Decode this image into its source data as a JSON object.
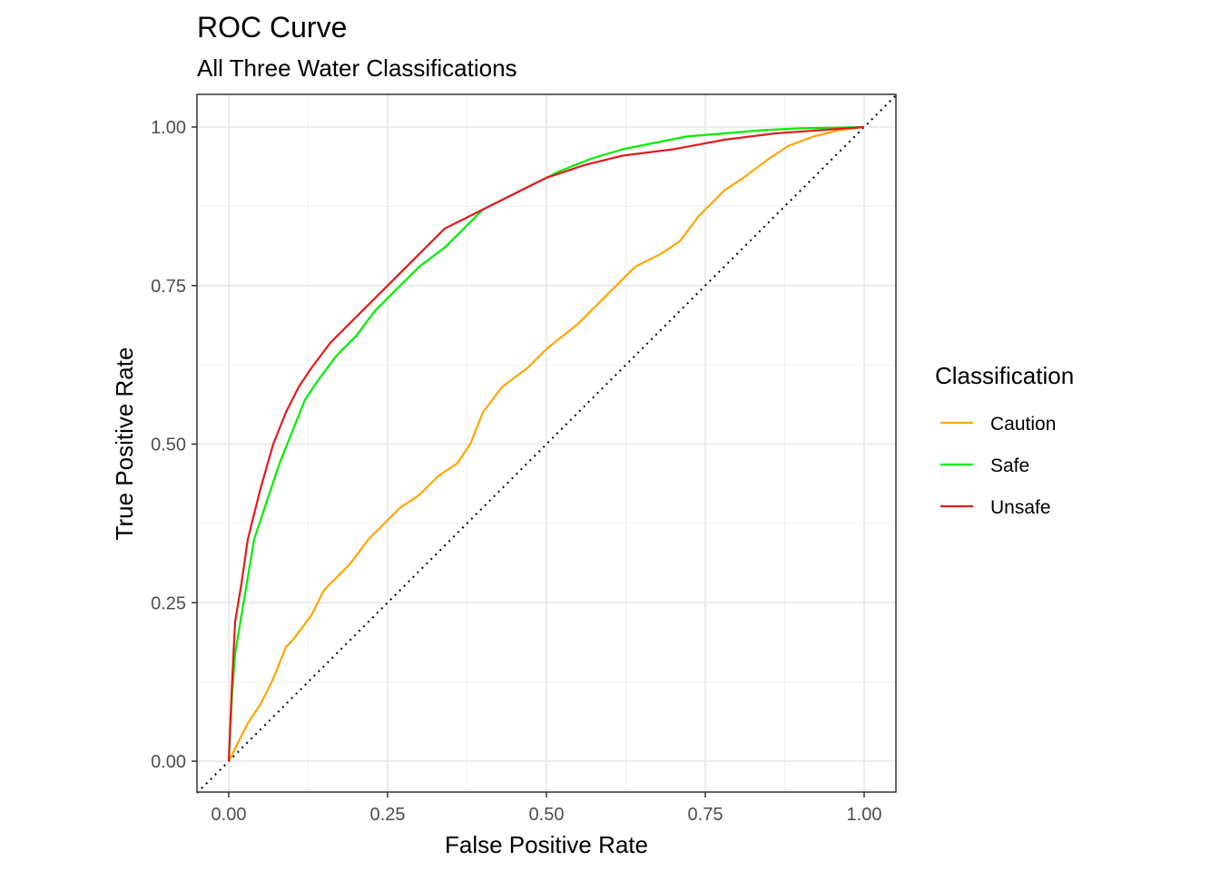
{
  "chart_data": {
    "type": "line",
    "title": "ROC Curve",
    "subtitle": "All Three Water Classifications",
    "xlabel": "False Positive Rate",
    "ylabel": "True Positive Rate",
    "xlim": [
      0,
      1
    ],
    "ylim": [
      0,
      1
    ],
    "x_ticks": [
      "0.00",
      "0.25",
      "0.50",
      "0.75",
      "1.00"
    ],
    "y_ticks": [
      "0.00",
      "0.25",
      "0.50",
      "0.75",
      "1.00"
    ],
    "grid": true,
    "reference_line": "diagonal dotted",
    "legend": {
      "title": "Classification",
      "position": "right"
    },
    "series": [
      {
        "name": "Caution",
        "color": "#FFA500",
        "x": [
          0,
          0.01,
          0.02,
          0.03,
          0.05,
          0.07,
          0.09,
          0.1,
          0.13,
          0.15,
          0.17,
          0.19,
          0.22,
          0.24,
          0.27,
          0.3,
          0.33,
          0.36,
          0.38,
          0.4,
          0.43,
          0.47,
          0.5,
          0.55,
          0.6,
          0.64,
          0.68,
          0.71,
          0.74,
          0.76,
          0.78,
          0.81,
          0.85,
          0.88,
          0.92,
          0.96,
          1.0
        ],
        "y": [
          0,
          0.02,
          0.04,
          0.06,
          0.09,
          0.13,
          0.18,
          0.19,
          0.23,
          0.27,
          0.29,
          0.31,
          0.35,
          0.37,
          0.4,
          0.42,
          0.45,
          0.47,
          0.5,
          0.55,
          0.59,
          0.62,
          0.65,
          0.69,
          0.74,
          0.78,
          0.8,
          0.82,
          0.86,
          0.88,
          0.9,
          0.92,
          0.95,
          0.97,
          0.985,
          0.995,
          1.0
        ]
      },
      {
        "name": "Safe",
        "color": "#00EE00",
        "x": [
          0,
          0.005,
          0.01,
          0.02,
          0.03,
          0.04,
          0.06,
          0.08,
          0.1,
          0.12,
          0.14,
          0.17,
          0.2,
          0.23,
          0.26,
          0.3,
          0.34,
          0.37,
          0.4,
          0.44,
          0.48,
          0.52,
          0.57,
          0.62,
          0.67,
          0.72,
          0.78,
          0.84,
          0.9,
          0.95,
          1.0
        ],
        "y": [
          0,
          0.1,
          0.17,
          0.23,
          0.29,
          0.35,
          0.41,
          0.47,
          0.52,
          0.57,
          0.6,
          0.64,
          0.67,
          0.71,
          0.74,
          0.78,
          0.81,
          0.84,
          0.87,
          0.89,
          0.91,
          0.93,
          0.95,
          0.965,
          0.975,
          0.985,
          0.99,
          0.995,
          0.998,
          0.999,
          1.0
        ]
      },
      {
        "name": "Unsafe",
        "color": "#E41A1C",
        "x": [
          0,
          0.005,
          0.01,
          0.02,
          0.03,
          0.05,
          0.07,
          0.09,
          0.11,
          0.13,
          0.16,
          0.19,
          0.22,
          0.26,
          0.3,
          0.34,
          0.38,
          0.42,
          0.46,
          0.5,
          0.56,
          0.62,
          0.7,
          0.78,
          0.86,
          0.93,
          1.0
        ],
        "y": [
          0,
          0.12,
          0.22,
          0.28,
          0.35,
          0.43,
          0.5,
          0.55,
          0.59,
          0.62,
          0.66,
          0.69,
          0.72,
          0.76,
          0.8,
          0.84,
          0.86,
          0.88,
          0.9,
          0.92,
          0.94,
          0.955,
          0.965,
          0.98,
          0.99,
          0.995,
          1.0
        ]
      }
    ]
  }
}
